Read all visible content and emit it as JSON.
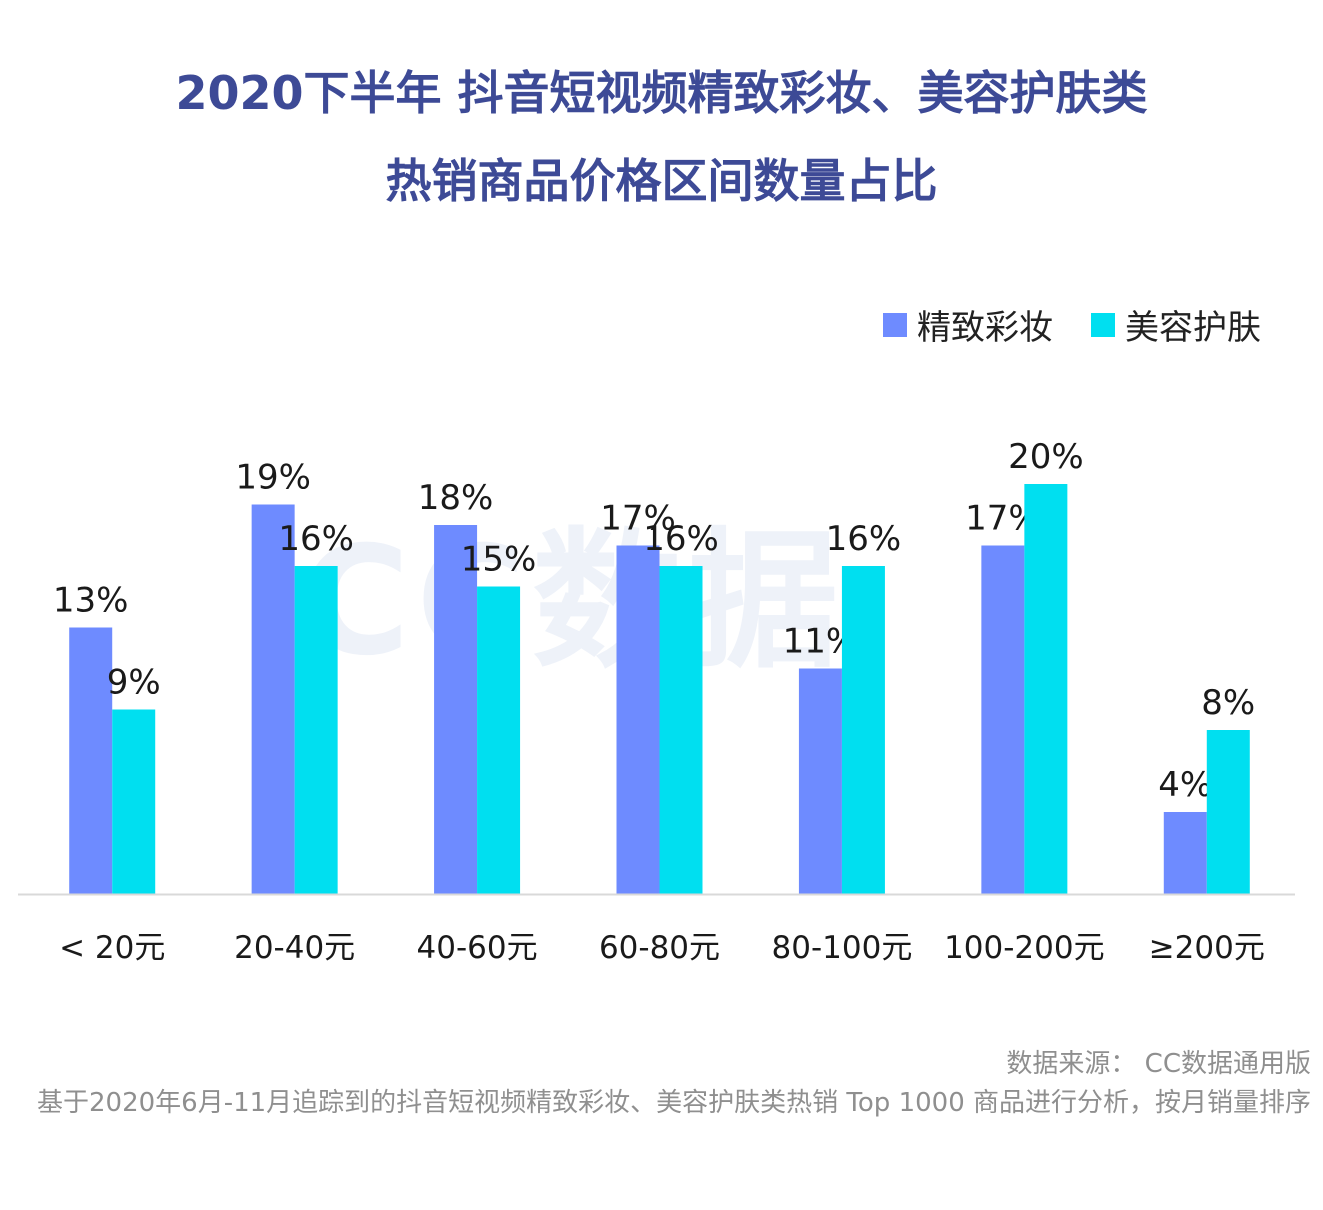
{
  "title": {
    "line1": "2020下半年 抖音短视频精致彩妆、美容护肤类",
    "line2": "热销商品价格区间数量占比"
  },
  "watermark": "CC数据",
  "footer": {
    "source": "数据来源： CC数据通用版",
    "description": "基于2020年6月-11月追踪到的抖音短视频精致彩妆、美容护肤类热销 Top 1000 商品进行分析，按月销量排序"
  },
  "chart_data": {
    "type": "bar",
    "categories": [
      "< 20元",
      "20-40元",
      "40-60元",
      "60-80元",
      "80-100元",
      "100-200元",
      "≥200元"
    ],
    "series": [
      {
        "name": "精致彩妆",
        "color": "#6e8bff",
        "values": [
          13,
          19,
          18,
          17,
          11,
          17,
          4
        ],
        "labels": [
          "13%",
          "19%",
          "18%",
          "17%",
          "11%",
          "17%",
          "4%"
        ]
      },
      {
        "name": "美容护肤",
        "color": "#00dff0",
        "values": [
          9,
          16,
          15,
          16,
          16,
          20,
          8
        ],
        "labels": [
          "9%",
          "16%",
          "15%",
          "16%",
          "16%",
          "20%",
          "8%"
        ]
      }
    ],
    "ylim": [
      0,
      20
    ],
    "legend_position": "top-right",
    "grid": false
  }
}
